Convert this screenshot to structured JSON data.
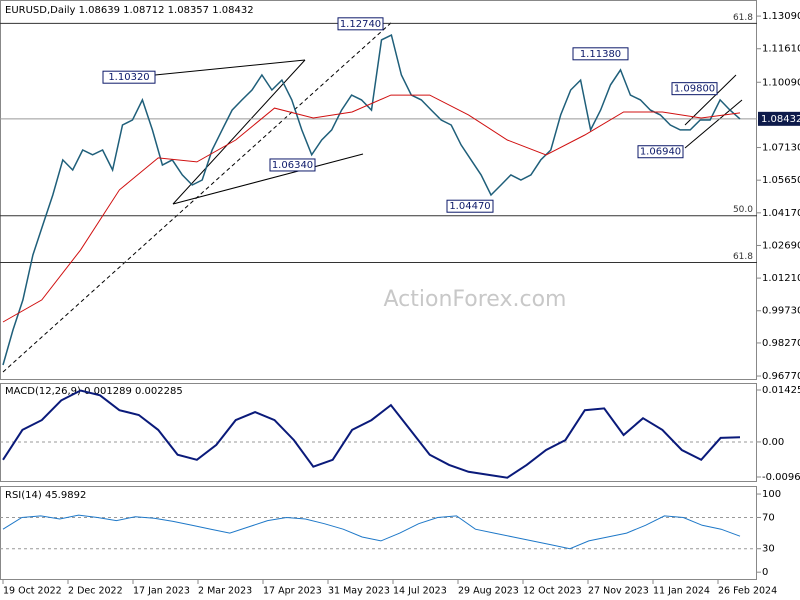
{
  "chart_data": {
    "type": "line",
    "title": "EURUSD,Daily  1.08639 1.08712 1.08357 1.08432",
    "watermark": "ActionForex.com",
    "x_labels": [
      "19 Oct 2022",
      "2 Dec 2022",
      "17 Jan 2023",
      "2 Mar 2023",
      "17 Apr 2023",
      "31 May 2023",
      "14 Jul 2023",
      "29 Aug 2023",
      "12 Oct 2023",
      "27 Nov 2023",
      "11 Jan 2024",
      "26 Feb 2024"
    ],
    "ylim": [
      0.9659,
      1.1382
    ],
    "yticks": [
      {
        "value": 0.9677,
        "label": "0.96770"
      },
      {
        "value": 0.9827,
        "label": "0.98270"
      },
      {
        "value": 0.9973,
        "label": "0.99730"
      },
      {
        "value": 1.0121,
        "label": "1.01210"
      },
      {
        "value": 1.0269,
        "label": "1.02690"
      },
      {
        "value": 1.0417,
        "label": "1.04170"
      },
      {
        "value": 1.0565,
        "label": "1.05650"
      },
      {
        "value": 1.0713,
        "label": "1.07130"
      },
      {
        "value": 1.1009,
        "label": "1.10090"
      },
      {
        "value": 1.1161,
        "label": "1.11610"
      },
      {
        "value": 1.1309,
        "label": "1.13090"
      }
    ],
    "current_price": {
      "value": 1.08432,
      "label": "1.08432"
    },
    "levels": [
      {
        "value": 1.1276,
        "label": "61.8"
      },
      {
        "value": 1.0404,
        "label": "50.0"
      },
      {
        "value": 1.0192,
        "label": "61.8"
      }
    ],
    "annotations": [
      {
        "value": 1.1032,
        "label": "1.10320"
      },
      {
        "value": 1.1274,
        "label": "1.12740"
      },
      {
        "value": 1.0634,
        "label": "1.06340"
      },
      {
        "value": 1.0447,
        "label": "1.04470"
      },
      {
        "value": 1.1138,
        "label": "1.11380"
      },
      {
        "value": 1.098,
        "label": "1.09800"
      },
      {
        "value": 1.0694,
        "label": "1.06940"
      }
    ],
    "series": [
      {
        "name": "EURUSD",
        "color": "#1f5f7a",
        "values": [
          0.9727,
          0.9886,
          1.0022,
          1.0226,
          1.0362,
          1.0498,
          1.0657,
          1.0611,
          1.0702,
          1.068,
          1.0702,
          1.0611,
          1.0815,
          1.0838,
          1.0929,
          1.0793,
          1.0634,
          1.0657,
          1.0589,
          1.0543,
          1.0566,
          1.0702,
          1.0793,
          1.0883,
          1.0929,
          1.0974,
          1.1042,
          1.0974,
          1.1019,
          1.0929,
          1.0793,
          1.068,
          1.0747,
          1.0793,
          1.0883,
          1.0951,
          1.0929,
          1.0883,
          1.1201,
          1.1223,
          1.1042,
          1.0951,
          1.0929,
          1.0883,
          1.0838,
          1.0815,
          1.0725,
          1.0657,
          1.0589,
          1.0498,
          1.0543,
          1.0589,
          1.0566,
          1.0589,
          1.0657,
          1.0702,
          1.0861,
          1.0974,
          1.1019,
          1.0793,
          1.0883,
          1.0997,
          1.1065,
          1.0951,
          1.0929,
          1.0883,
          1.0861,
          1.0815,
          1.0793,
          1.0793,
          1.0838,
          1.0838,
          1.0929,
          1.0883,
          1.0843
        ]
      },
      {
        "name": "MA",
        "color": "#d01010",
        "values": [
          0.9922,
          1.0022,
          1.0249,
          1.0521,
          1.0666,
          1.0648,
          1.0747,
          1.0892,
          1.0847,
          1.0874,
          1.0951,
          1.0951,
          1.0861,
          1.0747,
          1.0679,
          1.077,
          1.0874,
          1.0874,
          1.0847,
          1.087
        ]
      }
    ],
    "macd": {
      "title": "MACD(12,26,9) 0.001289 0.002285",
      "color": "#0a1a7a",
      "ylim": [
        -0.01099,
        0.01617
      ],
      "yticks": [
        0.014251,
        {
          "value": 0,
          "label": "0.00"
        },
        -0.009617
      ],
      "values": [
        -0.0049,
        0.0033,
        0.006,
        0.0114,
        0.0141,
        0.0128,
        0.0087,
        0.0074,
        0.0033,
        -0.0035,
        -0.0049,
        -0.0008,
        0.006,
        0.0082,
        0.006,
        0.0005,
        -0.0068,
        -0.0049,
        0.0033,
        0.006,
        0.0101,
        0.0033,
        -0.0035,
        -0.0063,
        -0.0082,
        -0.009,
        -0.0098,
        -0.0063,
        -0.0022,
        0.0005,
        0.0087,
        0.0092,
        0.0019,
        0.0065,
        0.0033,
        -0.0022,
        -0.0049,
        0.0011,
        0.0013
      ]
    },
    "rsi": {
      "title": "RSI(14) 45.9892",
      "color": "#1e78c8",
      "ylim": [
        -10,
        109
      ],
      "yticks": [
        100,
        70,
        30,
        0
      ],
      "values": [
        55,
        70,
        72,
        68,
        73,
        70,
        66,
        71,
        69,
        65,
        60,
        55,
        50,
        58,
        66,
        70,
        68,
        62,
        55,
        45,
        40,
        50,
        62,
        70,
        72,
        55,
        50,
        45,
        40,
        35,
        30,
        40,
        45,
        50,
        60,
        72,
        70,
        60,
        55,
        46
      ]
    }
  }
}
